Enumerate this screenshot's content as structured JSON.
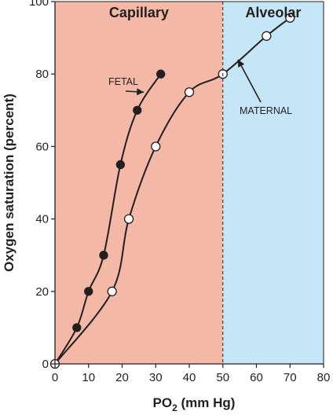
{
  "chart_data": {
    "type": "line",
    "title": "",
    "xlabel": {
      "main": "PO",
      "sub": "2",
      "unit": " (mm Hg)"
    },
    "ylabel": "Oxygen saturation (percent)",
    "xlim": [
      0,
      80
    ],
    "ylim": [
      0,
      100
    ],
    "xticks": [
      0,
      10,
      20,
      30,
      40,
      50,
      60,
      70,
      80
    ],
    "yticks": [
      0,
      20,
      40,
      60,
      80,
      100
    ],
    "grid": false,
    "regions": [
      {
        "label": "Capillary",
        "x": [
          0,
          50
        ],
        "color": "#f4b8a6"
      },
      {
        "label": "Alveolar",
        "x": [
          50,
          80
        ],
        "color": "#c5e6f7"
      }
    ],
    "boundary_x": 50,
    "series": [
      {
        "name": "FETAL",
        "marker": "filled-circle",
        "color": "#231f20",
        "points": [
          [
            0,
            0
          ],
          [
            6.5,
            10
          ],
          [
            10,
            20
          ],
          [
            14.5,
            30
          ],
          [
            19.5,
            55
          ],
          [
            24.5,
            70
          ],
          [
            31.5,
            80
          ]
        ]
      },
      {
        "name": "MATERNAL",
        "marker": "open-circle",
        "color": "#231f20",
        "points": [
          [
            0,
            0
          ],
          [
            17,
            20
          ],
          [
            22,
            40
          ],
          [
            30,
            60
          ],
          [
            40,
            75
          ],
          [
            50,
            80
          ],
          [
            63,
            90.5
          ],
          [
            70,
            95.5
          ]
        ]
      }
    ],
    "annotations": [
      {
        "text": "FETAL",
        "series": "FETAL",
        "arrow_to": [
          26.5,
          75
        ]
      },
      {
        "text": "MATERNAL",
        "series": "MATERNAL",
        "arrow_to": [
          54.5,
          84
        ]
      }
    ]
  }
}
